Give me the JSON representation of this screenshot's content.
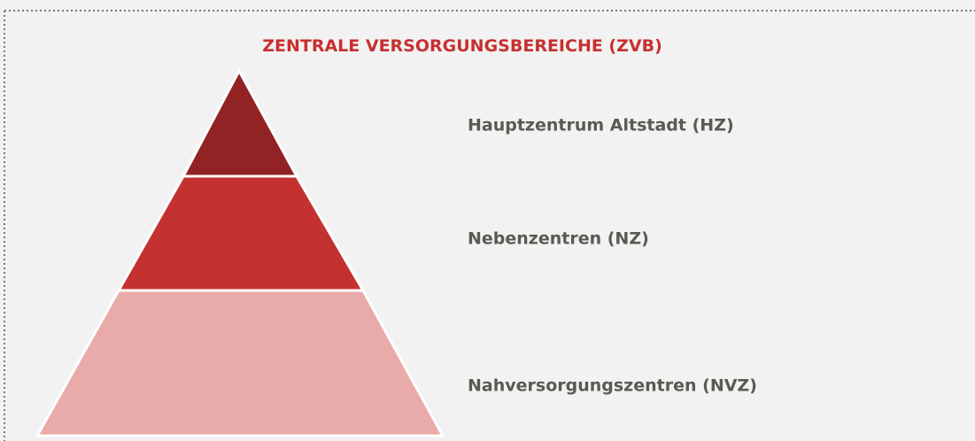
{
  "title": "ZENTRALE VERSORGUNGSBEREICHE (ZVB)",
  "levels": [
    {
      "label": "Hauptzentrum Altstadt (HZ)"
    },
    {
      "label": "Nebenzentren (NZ)"
    },
    {
      "label": "Nahversorgungszentren (NVZ)"
    }
  ]
}
